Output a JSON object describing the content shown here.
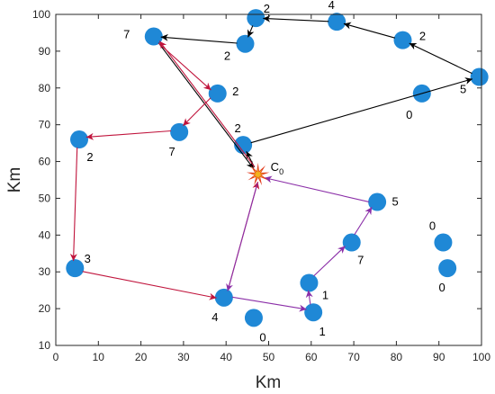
{
  "chart_data": {
    "type": "scatter",
    "title": "",
    "xlabel": "Km",
    "ylabel": "Km",
    "xlim": [
      0,
      100
    ],
    "ylim": [
      10,
      100
    ],
    "x_ticks": [
      0,
      10,
      20,
      30,
      40,
      50,
      60,
      70,
      80,
      90,
      100
    ],
    "y_ticks": [
      10,
      20,
      30,
      40,
      50,
      60,
      70,
      80,
      90,
      100
    ],
    "grid": false,
    "point_color": "#1f88d6",
    "depot": {
      "x": 47.5,
      "y": 56.5,
      "label": "C",
      "subscript": "0"
    },
    "points": [
      {
        "x": 47,
        "y": 99,
        "label": "2"
      },
      {
        "x": 66,
        "y": 98,
        "label": "4"
      },
      {
        "x": 44.5,
        "y": 92,
        "label": "2"
      },
      {
        "x": 81.5,
        "y": 93,
        "label": "2"
      },
      {
        "x": 23,
        "y": 94,
        "label": "7"
      },
      {
        "x": 99.5,
        "y": 83,
        "label": "5"
      },
      {
        "x": 86,
        "y": 78.5,
        "label": "0"
      },
      {
        "x": 38,
        "y": 78.5,
        "label": "2"
      },
      {
        "x": 29,
        "y": 68,
        "label": "7"
      },
      {
        "x": 5.5,
        "y": 66,
        "label": "2"
      },
      {
        "x": 44,
        "y": 64.5,
        "label": "2"
      },
      {
        "x": 75.5,
        "y": 49,
        "label": "5"
      },
      {
        "x": 91,
        "y": 38,
        "label": "0"
      },
      {
        "x": 92,
        "y": 31,
        "label": "0"
      },
      {
        "x": 69.5,
        "y": 38,
        "label": "7"
      },
      {
        "x": 4.5,
        "y": 31,
        "label": "3"
      },
      {
        "x": 59.5,
        "y": 27,
        "label": "1"
      },
      {
        "x": 39.5,
        "y": 23,
        "label": "4"
      },
      {
        "x": 60.5,
        "y": 19,
        "label": "1"
      },
      {
        "x": 46.5,
        "y": 17.5,
        "label": "0"
      }
    ],
    "routes": [
      {
        "color": "#000000",
        "path": [
          [
            47.5,
            56.5
          ],
          [
            44,
            64.5
          ],
          [
            99.5,
            83
          ],
          [
            81.5,
            93
          ],
          [
            66,
            98
          ],
          [
            47,
            99
          ],
          [
            44.5,
            92
          ],
          [
            23,
            94
          ],
          [
            47.5,
            56.5
          ]
        ]
      },
      {
        "color": "#c0143c",
        "path": [
          [
            47.5,
            56.5
          ],
          [
            23,
            94
          ],
          [
            38,
            78.5
          ],
          [
            29,
            68
          ],
          [
            5.5,
            66
          ],
          [
            4.5,
            31
          ],
          [
            39.5,
            23
          ],
          [
            47.5,
            56.5
          ]
        ]
      },
      {
        "color": "#8b2fa8",
        "path": [
          [
            47.5,
            56.5
          ],
          [
            39.5,
            23
          ],
          [
            60.5,
            19
          ],
          [
            59.5,
            27
          ],
          [
            69.5,
            38
          ],
          [
            75.5,
            49
          ],
          [
            47.5,
            56.5
          ]
        ]
      }
    ]
  }
}
